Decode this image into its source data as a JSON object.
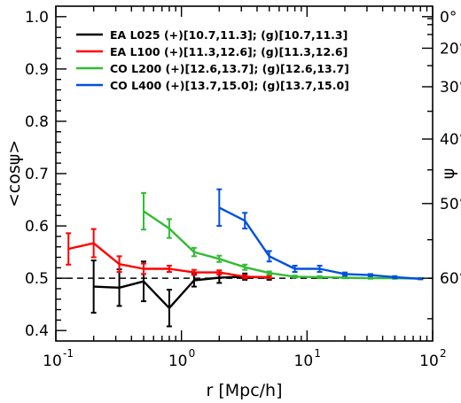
{
  "chart_data": {
    "type": "line",
    "xlabel": "r [Mpc/h]",
    "ylabel": "<cosψ>",
    "y2label": "ψ",
    "xscale": "log",
    "xlim": [
      0.1,
      100
    ],
    "ylim": [
      0.38,
      1.02
    ],
    "x_tick_labels": [
      "10",
      "-1",
      "10",
      "0",
      "10",
      "1",
      "10",
      "2"
    ],
    "y_ticks": [
      "0.4",
      "0.5",
      "0.6",
      "0.7",
      "0.8",
      "0.9",
      "1.0"
    ],
    "y2_ticks": [
      "0°",
      "20°",
      "30°",
      "40°",
      "50°",
      "60°"
    ],
    "legend_placement": "top-left",
    "reference_line": {
      "y": 0.5,
      "style": "dashed",
      "color": "#000000"
    },
    "series": [
      {
        "name": "EA L025 (+)[10.7,11.3]; (g)[10.7,11.3]",
        "color": "#000000",
        "x": [
          0.2,
          0.32,
          0.5,
          0.8,
          1.26,
          2.0,
          3.2,
          5.0
        ],
        "y": [
          0.484,
          0.482,
          0.494,
          0.443,
          0.496,
          0.501,
          0.503,
          0.501
        ],
        "err": [
          0.05,
          0.035,
          0.038,
          0.035,
          0.012,
          0.01,
          0.006,
          0.004
        ]
      },
      {
        "name": "EA L100 (+)[11.3,12.6]; (g)[11.3,12.6]",
        "color": "#ff0000",
        "x": [
          0.126,
          0.2,
          0.32,
          0.5,
          0.8,
          1.26,
          2.0,
          3.2,
          5.0
        ],
        "y": [
          0.556,
          0.567,
          0.527,
          0.518,
          0.518,
          0.511,
          0.511,
          0.503,
          0.502
        ],
        "err": [
          0.03,
          0.027,
          0.015,
          0.01,
          0.006,
          0.005,
          0.004,
          0.003,
          0.002
        ]
      },
      {
        "name": "CO L200 (+)[12.6,13.7]; (g)[12.6,13.7]",
        "color": "#33bb33",
        "x": [
          0.5,
          0.8,
          1.26,
          2.0,
          3.2,
          5.0,
          8.0,
          12.6,
          20,
          32,
          50,
          80
        ],
        "y": [
          0.628,
          0.595,
          0.55,
          0.537,
          0.521,
          0.51,
          0.503,
          0.502,
          0.501,
          0.5,
          0.5,
          0.499
        ],
        "err": [
          0.035,
          0.018,
          0.008,
          0.006,
          0.005,
          0.003,
          0.002,
          0.002,
          0.001,
          0.001,
          0.001,
          0.001
        ]
      },
      {
        "name": "CO L400 (+)[13.7,15.0]; (g)[13.7,15.0]",
        "color": "#0050e0",
        "x": [
          2.0,
          3.2,
          5.0,
          8.0,
          12.6,
          20,
          32,
          50,
          80
        ],
        "y": [
          0.635,
          0.61,
          0.542,
          0.518,
          0.518,
          0.508,
          0.506,
          0.502,
          0.499
        ],
        "err": [
          0.035,
          0.015,
          0.01,
          0.006,
          0.006,
          0.003,
          0.002,
          0.002,
          0.001
        ]
      }
    ]
  }
}
